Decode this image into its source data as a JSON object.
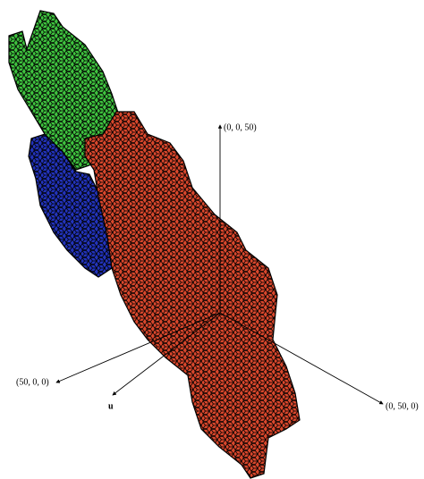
{
  "axes": {
    "z_label": "(0, 0, 50)",
    "x_label": "(50, 0, 0)",
    "y_label": "(0, 50, 0)",
    "u_label": "u"
  }
}
